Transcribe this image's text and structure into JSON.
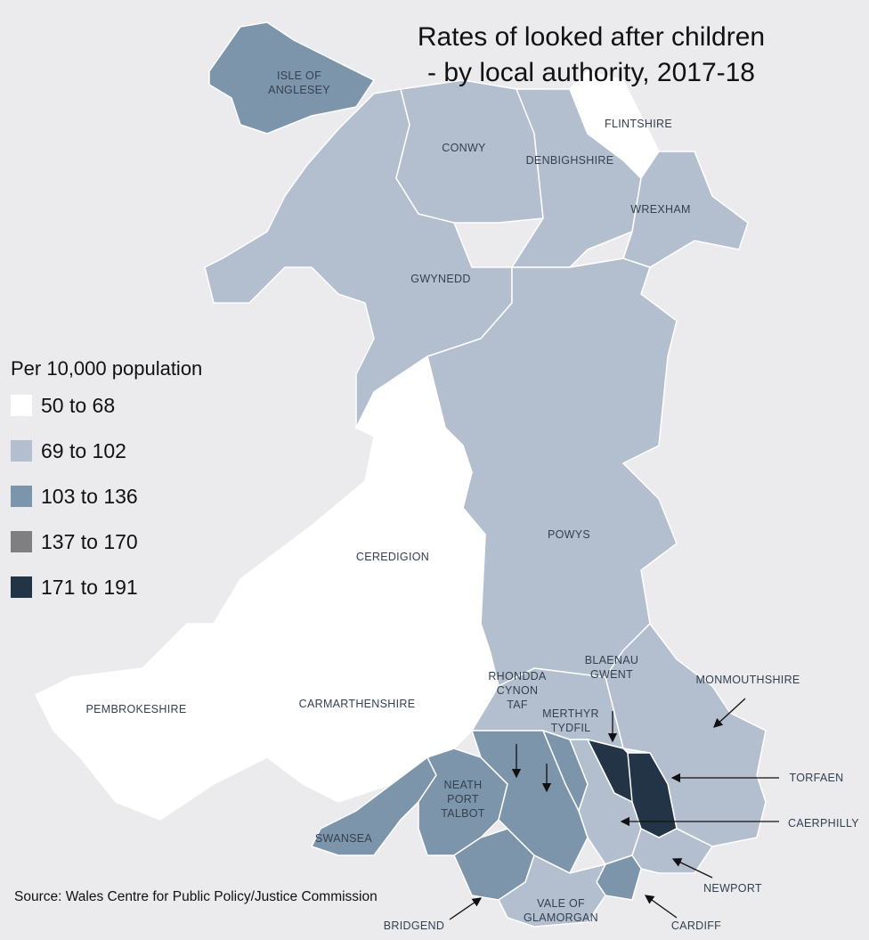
{
  "header": {
    "title_lines": [
      "Rates of looked after children",
      "- by local authority, 2017-18"
    ]
  },
  "legend": {
    "title": "Per 10,000 population",
    "items": [
      {
        "label": "50 to 68",
        "color": "#ffffff"
      },
      {
        "label": "69 to 102",
        "color": "#b3bfcf"
      },
      {
        "label": "103 to 136",
        "color": "#7d95ab"
      },
      {
        "label": "137 to 170",
        "color": "#7f7f7f"
      },
      {
        "label": "171 to 191",
        "color": "#243447"
      }
    ]
  },
  "regions": [
    {
      "lines": [
        "ISLE OF",
        "ANGLESEY"
      ]
    },
    {
      "lines": [
        "CONWY"
      ]
    },
    {
      "lines": [
        "DENBIGHSHIRE"
      ]
    },
    {
      "lines": [
        "FLINTSHIRE"
      ]
    },
    {
      "lines": [
        "WREXHAM"
      ]
    },
    {
      "lines": [
        "GWYNEDD"
      ]
    },
    {
      "lines": [
        "POWYS"
      ]
    },
    {
      "lines": [
        "CEREDIGION"
      ]
    },
    {
      "lines": [
        "PEMBROKESHIRE"
      ]
    },
    {
      "lines": [
        "CARMARTHENSHIRE"
      ]
    },
    {
      "lines": [
        "RHONDDA",
        "CYNON",
        "TAF"
      ]
    },
    {
      "lines": [
        "BLAENAU",
        "GWENT"
      ]
    },
    {
      "lines": [
        "MERTHYR",
        "TYDFIL"
      ]
    },
    {
      "lines": [
        "MONMOUTHSHIRE"
      ]
    },
    {
      "lines": [
        "NEATH",
        "PORT",
        "TALBOT"
      ]
    },
    {
      "lines": [
        "TORFAEN"
      ]
    },
    {
      "lines": [
        "CAERPHILLY"
      ]
    },
    {
      "lines": [
        "SWANSEA"
      ]
    },
    {
      "lines": [
        "NEWPORT"
      ]
    },
    {
      "lines": [
        "VALE OF",
        "GLAMORGAN"
      ]
    },
    {
      "lines": [
        "BRIDGEND"
      ]
    },
    {
      "lines": [
        "CARDIFF"
      ]
    }
  ],
  "source": "Source: Wales Centre for Public Policy/Justice Commission"
}
